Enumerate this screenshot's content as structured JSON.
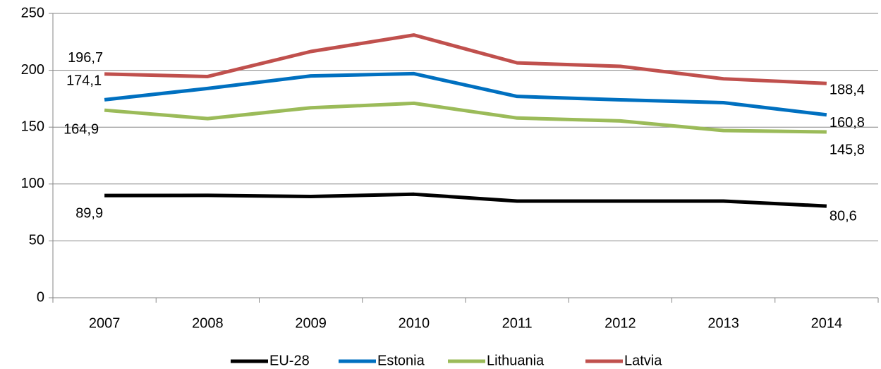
{
  "chart_data": {
    "type": "line",
    "categories": [
      "2007",
      "2008",
      "2009",
      "2010",
      "2011",
      "2012",
      "2013",
      "2014"
    ],
    "series": [
      {
        "name": "EU-28",
        "color": "#000000",
        "values": [
          89.9,
          90,
          89,
          91,
          85,
          85,
          85,
          80.6
        ],
        "value_labels": [
          "89,9",
          null,
          null,
          null,
          null,
          null,
          null,
          "80,6"
        ]
      },
      {
        "name": "Estonia",
        "color": "#0070c0",
        "values": [
          174.1,
          184,
          195,
          197,
          177,
          174,
          171.5,
          160.8
        ],
        "value_labels": [
          "174,1",
          null,
          null,
          null,
          null,
          null,
          null,
          "160,8"
        ]
      },
      {
        "name": "Lithuania",
        "color": "#9bbb59",
        "values": [
          164.9,
          157.5,
          167,
          171,
          158,
          155.5,
          147,
          145.8
        ],
        "value_labels": [
          "164,9",
          null,
          null,
          null,
          null,
          null,
          null,
          "145,8"
        ]
      },
      {
        "name": "Latvia",
        "color": "#c0504d",
        "values": [
          196.7,
          194.5,
          216.5,
          231,
          206.5,
          203.5,
          192.5,
          188.4
        ],
        "value_labels": [
          "196,7",
          null,
          null,
          null,
          null,
          null,
          null,
          "188,4"
        ]
      }
    ],
    "ylim": [
      0,
      250
    ],
    "yticks": [
      0,
      50,
      100,
      150,
      200,
      250
    ],
    "grid": true,
    "legend": "bottom"
  }
}
